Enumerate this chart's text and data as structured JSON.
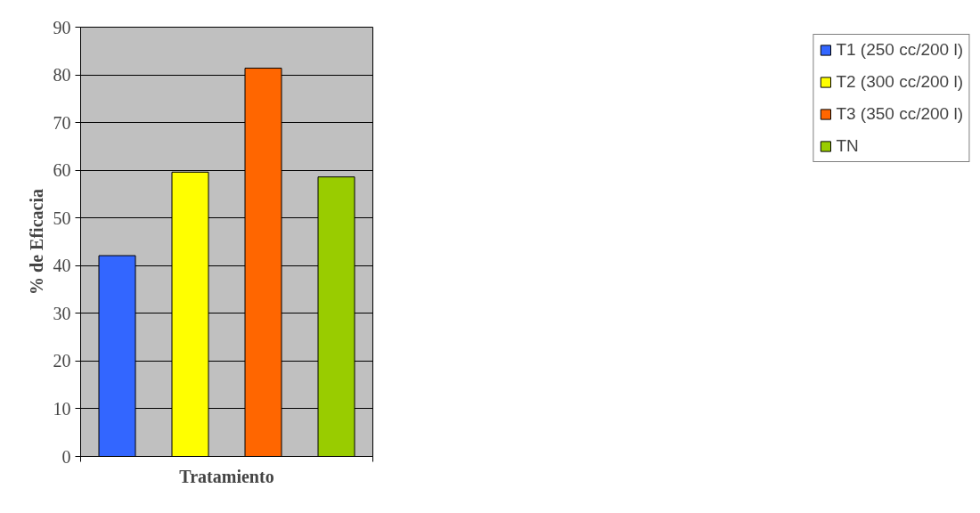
{
  "chart_data": {
    "type": "bar",
    "xlabel": "Tratamiento",
    "ylabel": "% de Eficacia",
    "categories": [
      null
    ],
    "series": [
      {
        "name": "T1 (250 cc/200 l)",
        "color": "#3366ff",
        "values": [
          42.1
        ]
      },
      {
        "name": "T2 (300 cc/200 l)",
        "color": "#ffff00",
        "values": [
          59.6
        ]
      },
      {
        "name": "T3 (350 cc/200 l)",
        "color": "#ff6600",
        "values": [
          81.4
        ]
      },
      {
        "name": "TN",
        "color": "#99cc00",
        "values": [
          58.6
        ]
      }
    ],
    "ylim": [
      0,
      90
    ],
    "yticks": [
      0,
      10,
      20,
      30,
      40,
      50,
      60,
      70,
      80,
      90
    ],
    "grid": "y",
    "legend": "right"
  }
}
